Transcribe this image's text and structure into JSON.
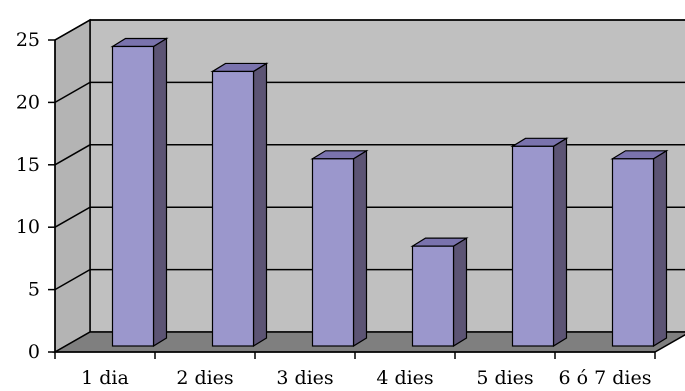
{
  "chart_data": {
    "type": "bar",
    "style": "3d",
    "categories": [
      "1 dia",
      "2 dies",
      "3 dies",
      "4 dies",
      "5 dies",
      "6 ó 7 dies"
    ],
    "values": [
      24,
      22,
      15,
      8,
      16,
      15
    ],
    "yticks": [
      0,
      5,
      10,
      15,
      20,
      25
    ],
    "ylim": [
      0,
      25
    ],
    "grid": true,
    "legend": "none",
    "colors": {
      "bar_front": "#9b97cc",
      "bar_side": "#5c5474",
      "bar_top": "#7a73ad",
      "back_wall": "#c0c0c0",
      "side_wall": "#b4b4b4",
      "floor": "#7f7f7f",
      "gridline": "#000000"
    }
  }
}
